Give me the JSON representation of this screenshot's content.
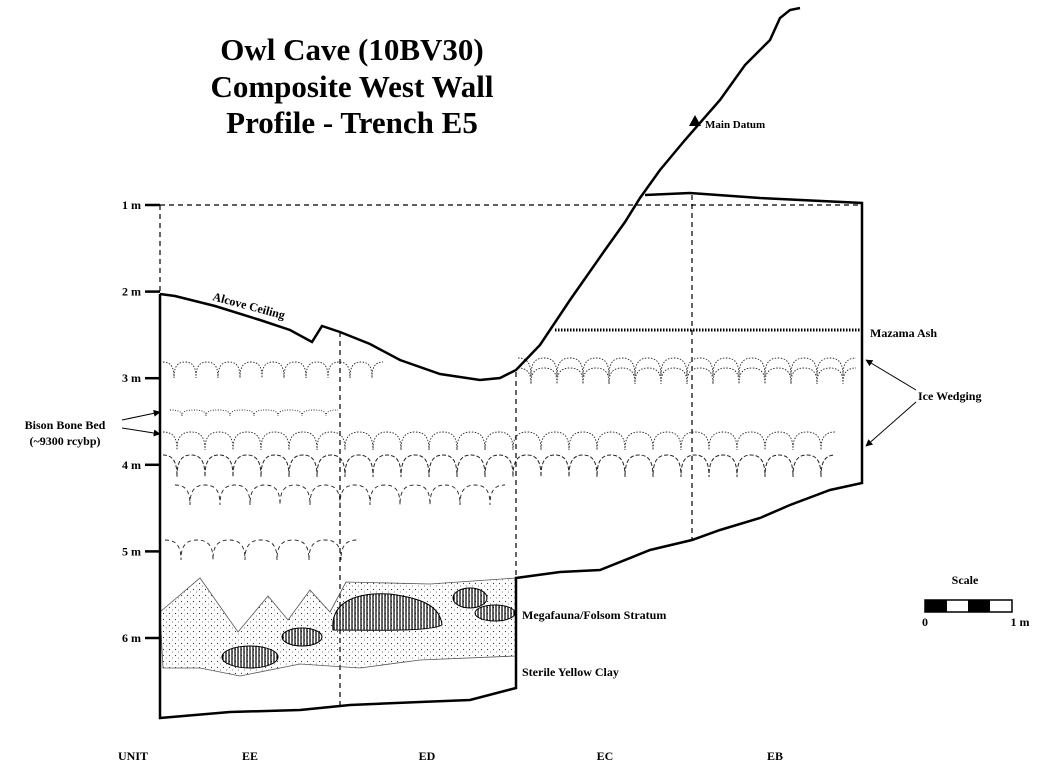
{
  "title": [
    "Owl Cave (10BV30)",
    "Composite West Wall",
    "Profile - Trench E5"
  ],
  "depth_labels": [
    "1 m",
    "2 m",
    "3 m",
    "4 m",
    "5 m",
    "6 m"
  ],
  "units": [
    "UNIT",
    "EE",
    "ED",
    "EC",
    "EB"
  ],
  "annotations": {
    "alcove": "Alcove Ceiling",
    "datum": "Main Datum",
    "mazama": "Mazama Ash",
    "ice": "Ice Wedging",
    "bison": [
      "Bison Bone Bed",
      "(~9300 rcybp)"
    ],
    "megafauna": "Megafauna/Folsom Stratum",
    "clay": "Sterile Yellow Clay"
  },
  "scale": {
    "title": "Scale",
    "start": "0",
    "end": "1 m"
  }
}
